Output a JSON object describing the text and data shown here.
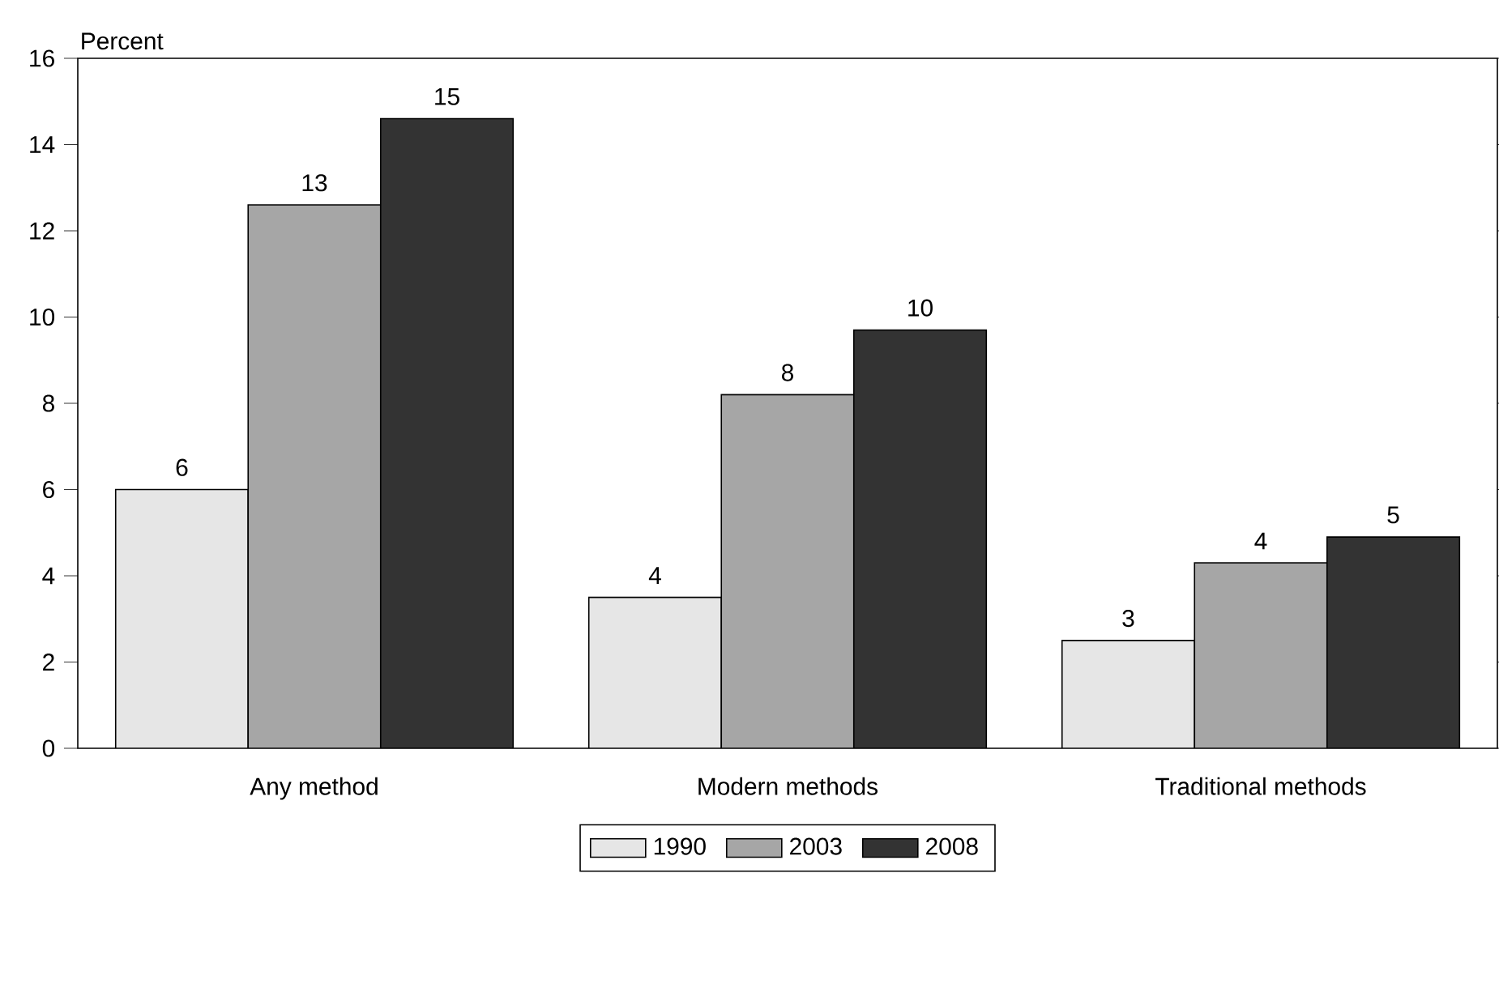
{
  "chart_data": {
    "type": "bar",
    "ylabel": "Percent",
    "categories": [
      "Any method",
      "Modern methods",
      "Traditional methods"
    ],
    "series": [
      {
        "name": "1990",
        "color": "#e6e6e6",
        "values": [
          6.0,
          3.5,
          2.5
        ],
        "value_labels": [
          "6",
          "4",
          "3"
        ]
      },
      {
        "name": "2003",
        "color": "#a6a6a6",
        "values": [
          12.6,
          8.2,
          4.3
        ],
        "value_labels": [
          "13",
          "8",
          "4"
        ]
      },
      {
        "name": "2008",
        "color": "#333333",
        "values": [
          14.6,
          9.7,
          4.9
        ],
        "value_labels": [
          "15",
          "10",
          "5"
        ]
      }
    ],
    "ylim": [
      0,
      16
    ],
    "yticks": [
      0,
      2,
      4,
      6,
      8,
      10,
      12,
      14,
      16
    ],
    "grid": false,
    "legend": "bottom"
  }
}
